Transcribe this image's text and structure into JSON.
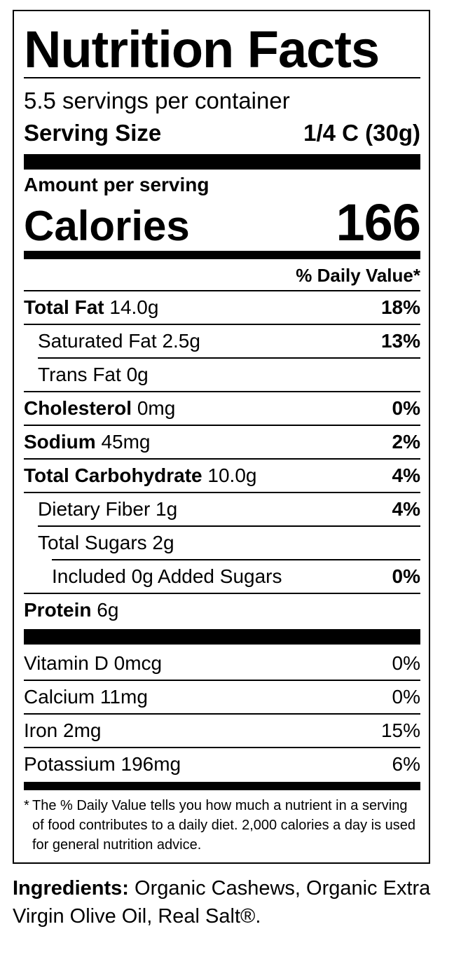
{
  "label": {
    "title": "Nutrition Facts",
    "servings_per_container": "5.5 servings per container",
    "serving_size_label": "Serving Size",
    "serving_size_value": "1/4 C (30g)",
    "amount_per_serving": "Amount per serving",
    "calories_label": "Calories",
    "calories_value": "166",
    "daily_value_header": "% Daily Value*"
  },
  "nutrients": [
    {
      "name": "Total Fat",
      "amount": "14.0g",
      "dv": "18%"
    },
    {
      "name": "Saturated Fat",
      "amount": "2.5g",
      "dv": "13%"
    },
    {
      "name": "Trans Fat",
      "amount": "0g",
      "dv": ""
    },
    {
      "name": "Cholesterol",
      "amount": "0mg",
      "dv": "0%"
    },
    {
      "name": "Sodium",
      "amount": "45mg",
      "dv": "2%"
    },
    {
      "name": "Total Carbohydrate",
      "amount": "10.0g",
      "dv": "4%"
    },
    {
      "name": "Dietary Fiber",
      "amount": "1g",
      "dv": "4%"
    },
    {
      "name": "Total Sugars",
      "amount": "2g",
      "dv": ""
    },
    {
      "name": "Included 0g Added Sugars",
      "amount": "",
      "dv": "0%"
    },
    {
      "name": "Protein",
      "amount": "6g",
      "dv": ""
    }
  ],
  "vitamins": [
    {
      "name": "Vitamin D",
      "amount": "0mcg",
      "dv": "0%"
    },
    {
      "name": "Calcium",
      "amount": "11mg",
      "dv": "0%"
    },
    {
      "name": "Iron",
      "amount": "2mg",
      "dv": "15%"
    },
    {
      "name": "Potassium",
      "amount": "196mg",
      "dv": "6%"
    }
  ],
  "footnote": {
    "star": "*",
    "text": "The % Daily Value tells you how much a nutrient in a serving of food contributes to a daily diet. 2,000 calories a day is used for general nutrition advice."
  },
  "ingredients": {
    "label": "Ingredients:",
    "text": "Organic Cashews, Organic Extra Virgin Olive Oil, Real Salt®."
  }
}
